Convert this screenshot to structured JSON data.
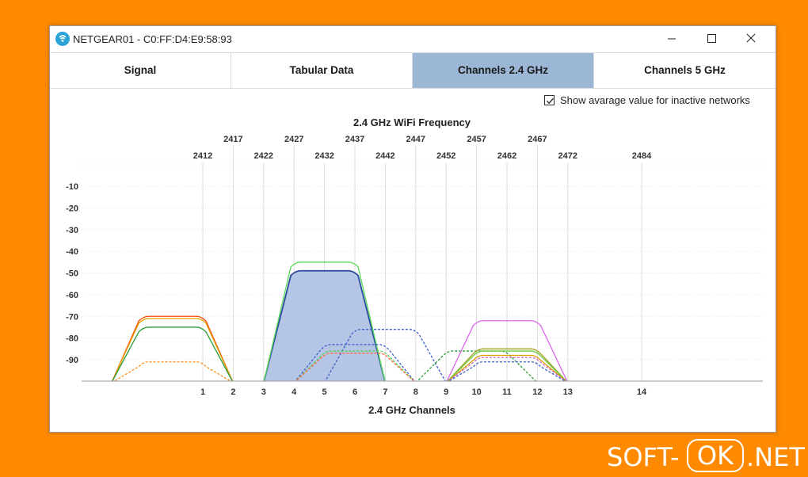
{
  "window": {
    "title": "NETGEAR01 - C0:FF:D4:E9:58:93",
    "controls": {
      "minimize": "—",
      "maximize": "☐",
      "close": "✕"
    }
  },
  "tabs": [
    {
      "label": "Signal",
      "active": false
    },
    {
      "label": "Tabular Data",
      "active": false
    },
    {
      "label": "Channels 2.4 GHz",
      "active": true
    },
    {
      "label": "Channels 5 GHz",
      "active": false
    }
  ],
  "options": {
    "show_average_label": "Show avarage value for inactive networks",
    "show_average_checked": true
  },
  "chart_data": {
    "type": "area",
    "title": "2.4 GHz WiFi Frequency",
    "xlabel": "2.4 GHz Channels",
    "channels": [
      {
        "ch": 1,
        "freq": 2412
      },
      {
        "ch": 2,
        "freq": 2417
      },
      {
        "ch": 3,
        "freq": 2422
      },
      {
        "ch": 4,
        "freq": 2427
      },
      {
        "ch": 5,
        "freq": 2432
      },
      {
        "ch": 6,
        "freq": 2437
      },
      {
        "ch": 7,
        "freq": 2442
      },
      {
        "ch": 8,
        "freq": 2447
      },
      {
        "ch": 9,
        "freq": 2452
      },
      {
        "ch": 10,
        "freq": 2457
      },
      {
        "ch": 11,
        "freq": 2462
      },
      {
        "ch": 12,
        "freq": 2467
      },
      {
        "ch": 13,
        "freq": 2472
      },
      {
        "ch": 14,
        "freq": 2484
      }
    ],
    "freq_labels_top": [
      2417,
      2427,
      2437,
      2447,
      2457,
      2467
    ],
    "freq_labels_bottom": [
      2412,
      2422,
      2432,
      2442,
      2452,
      2462,
      2472,
      2484
    ],
    "yticks": [
      -10,
      -20,
      -30,
      -40,
      -50,
      -60,
      -70,
      -80,
      -90
    ],
    "ylim": [
      -100,
      0
    ],
    "grid": true,
    "series": [
      {
        "start_ch": -2,
        "end_ch": 2,
        "level": -70,
        "color": "#ff4500",
        "style": "solid",
        "fill": false
      },
      {
        "start_ch": -2,
        "end_ch": 2,
        "level": -71,
        "color": "#e0a000",
        "style": "solid",
        "fill": false
      },
      {
        "start_ch": -2,
        "end_ch": 2,
        "level": -75,
        "color": "#2a9d3a",
        "style": "solid",
        "fill": false
      },
      {
        "start_ch": -2,
        "end_ch": 2,
        "level": -91,
        "color": "#ff8c1a",
        "style": "dashed",
        "fill": false
      },
      {
        "start_ch": 3,
        "end_ch": 7,
        "level": -45,
        "color": "#55dd55",
        "style": "solid",
        "fill": false
      },
      {
        "start_ch": 3,
        "end_ch": 7,
        "level": -49,
        "color": "#2b4a9e",
        "style": "solid",
        "fill": true,
        "fill_color": "#b5c5e6"
      },
      {
        "start_ch": 5,
        "end_ch": 9,
        "level": -76,
        "color": "#3a60c8",
        "style": "dashed",
        "fill": false
      },
      {
        "start_ch": 4,
        "end_ch": 8,
        "level": -83,
        "color": "#3a60c8",
        "style": "dashed",
        "fill": false
      },
      {
        "start_ch": 4,
        "end_ch": 8,
        "level": -86,
        "color": "#55cc55",
        "style": "dashed",
        "fill": false
      },
      {
        "start_ch": 4,
        "end_ch": 8,
        "level": -87,
        "color": "#ff6a3a",
        "style": "dashed",
        "fill": false
      },
      {
        "start_ch": 8,
        "end_ch": 12,
        "level": -86,
        "color": "#2a9d3a",
        "style": "dashed",
        "fill": false
      },
      {
        "start_ch": 9,
        "end_ch": 13,
        "level": -72,
        "color": "#dd66ee",
        "style": "solid",
        "fill": false
      },
      {
        "start_ch": 9,
        "end_ch": 13,
        "level": -85,
        "color": "#a0a020",
        "style": "solid",
        "fill": false
      },
      {
        "start_ch": 9,
        "end_ch": 13,
        "level": -86,
        "color": "#66cc44",
        "style": "solid",
        "fill": false
      },
      {
        "start_ch": 9,
        "end_ch": 13,
        "level": -88,
        "color": "#e0a000",
        "style": "solid",
        "fill": false
      },
      {
        "start_ch": 9,
        "end_ch": 13,
        "level": -89,
        "color": "#cc66cc",
        "style": "dashed",
        "fill": false
      },
      {
        "start_ch": 9,
        "end_ch": 13,
        "level": -91,
        "color": "#3a60c8",
        "style": "dashed",
        "fill": false
      }
    ]
  },
  "watermark": {
    "pre": "SOFT-",
    "mid": "OK",
    "post": ".NET"
  }
}
